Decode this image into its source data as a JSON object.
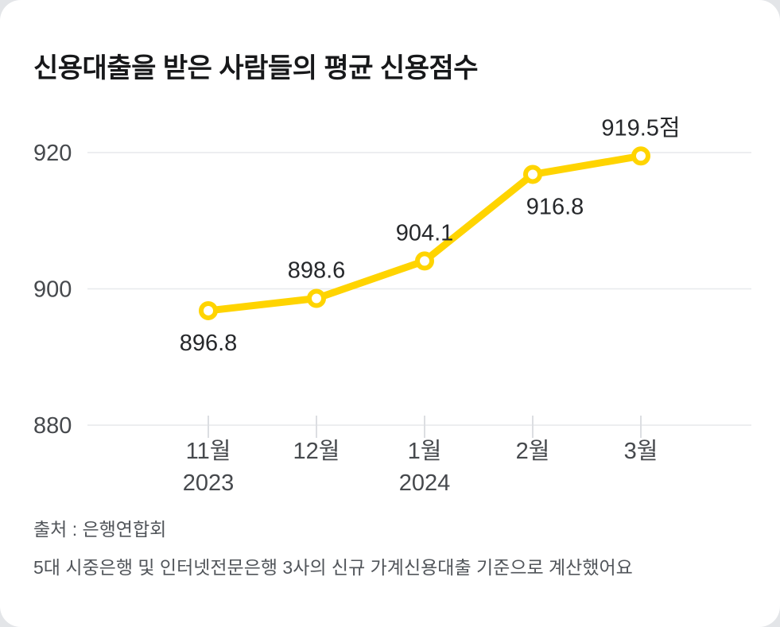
{
  "accent_color": "#FFD400",
  "grid_color": "#e7e9ec",
  "title": "신용대출을 받은 사람들의 평균 신용점수",
  "chart_data": {
    "type": "line",
    "title": "신용대출을 받은 사람들의 평균 신용점수",
    "x": [
      "11월",
      "12월",
      "1월",
      "2월",
      "3월"
    ],
    "x_sub": [
      "2023",
      "",
      "2024",
      "",
      ""
    ],
    "values": [
      896.8,
      898.6,
      904.1,
      916.8,
      919.5
    ],
    "point_labels": [
      "896.8",
      "898.6",
      "904.1",
      "916.8",
      "919.5점"
    ],
    "label_positions": [
      "below",
      "above",
      "above",
      "below-right",
      "above"
    ],
    "yticks": [
      880,
      900,
      920
    ],
    "ylim": [
      880,
      925
    ],
    "xlabel": "",
    "ylabel": "",
    "grid": "horizontal",
    "legend": "none",
    "series_name": "평균 신용점수",
    "line_color": "#FFD400"
  },
  "footer": {
    "source": "출처 : 은행연합회",
    "note": "5대 시중은행 및 인터넷전문은행 3사의 신규 가계신용대출 기준으로 계산했어요"
  }
}
